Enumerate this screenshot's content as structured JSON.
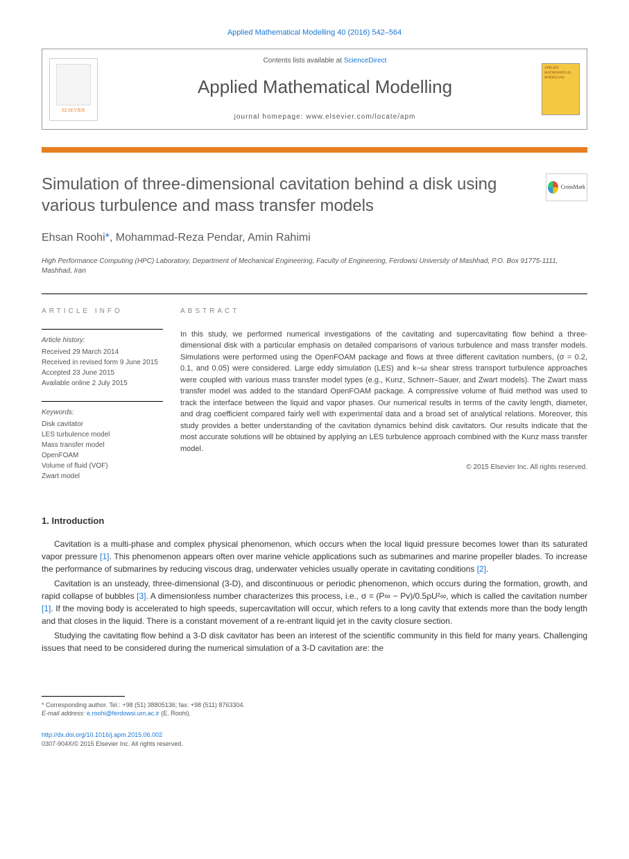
{
  "header": {
    "journal_ref": "Applied Mathematical Modelling 40 (2016) 542–564",
    "contents_prefix": "Contents lists available at ",
    "contents_link": "ScienceDirect",
    "journal_name": "Applied Mathematical Modelling",
    "homepage_label": "journal homepage: www.elsevier.com/locate/apm",
    "elsevier_label": "ELSEVIER",
    "thumb_text": "APPLIED MATHEMATICAL MODELLING",
    "crossmark": "CrossMark"
  },
  "article": {
    "title": "Simulation of three-dimensional cavitation behind a disk using various turbulence and mass transfer models",
    "authors": "Ehsan Roohi",
    "author_sep1": ", Mohammad-Reza Pendar, Amin Rahimi",
    "asterisk": "*",
    "affiliation": "High Performance Computing (HPC) Laboratory, Department of Mechanical Engineering, Faculty of Engineering, Ferdowsi University of Mashhad, P.O. Box 91775-1111, Mashhad, Iran"
  },
  "info": {
    "label": "ARTICLE INFO",
    "history_label": "Article history:",
    "received": "Received 29 March 2014",
    "revised": "Received in revised form 9 June 2015",
    "accepted": "Accepted 23 June 2015",
    "online": "Available online 2 July 2015",
    "keywords_label": "Keywords:",
    "kw1": "Disk cavitator",
    "kw2": "LES turbulence model",
    "kw3": "Mass transfer model",
    "kw4": "OpenFOAM",
    "kw5": "Volume of fluid (VOF)",
    "kw6": "Zwart model"
  },
  "abstract": {
    "label": "ABSTRACT",
    "text": "In this study, we performed numerical investigations of the cavitating and supercavitating flow behind a three-dimensional disk with a particular emphasis on detailed comparisons of various turbulence and mass transfer models. Simulations were performed using the OpenFOAM package and flows at three different cavitation numbers, (σ = 0.2, 0.1, and 0.05) were considered. Large eddy simulation (LES) and k−ω shear stress transport turbulence approaches were coupled with various mass transfer model types (e.g., Kunz, Schnerr–Sauer, and Zwart models). The Zwart mass transfer model was added to the standard OpenFOAM package. A compressive volume of fluid method was used to track the interface between the liquid and vapor phases. Our numerical results in terms of the cavity length, diameter, and drag coefficient compared fairly well with experimental data and a broad set of analytical relations. Moreover, this study provides a better understanding of the cavitation dynamics behind disk cavitators. Our results indicate that the most accurate solutions will be obtained by applying an LES turbulence approach combined with the Kunz mass transfer model.",
    "copyright": "© 2015 Elsevier Inc. All rights reserved."
  },
  "intro": {
    "heading": "1. Introduction",
    "p1a": "Cavitation is a multi-phase and complex physical phenomenon, which occurs when the local liquid pressure becomes lower than its saturated vapor pressure ",
    "p1_ref1": "[1]",
    "p1b": ". This phenomenon appears often over marine vehicle applications such as submarines and marine propeller blades. To increase the performance of submarines by reducing viscous drag, underwater vehicles usually operate in cavitating conditions ",
    "p1_ref2": "[2]",
    "p1c": ".",
    "p2a": "Cavitation is an unsteady, three-dimensional (3-D), and discontinuous or periodic phenomenon, which occurs during the formation, growth, and rapid collapse of bubbles ",
    "p2_ref1": "[3]",
    "p2b": ". A dimensionless number characterizes this process, i.e., σ = (P∞ − Pv)/0.5ρU²∞, which is called the cavitation number ",
    "p2_ref2": "[1]",
    "p2c": ". If the moving body is accelerated to high speeds, supercavitation will occur, which refers to a long cavity that extends more than the body length and that closes in the liquid. There is a constant movement of a re-entrant liquid jet in the cavity closure section.",
    "p3": "Studying the cavitating flow behind a 3-D disk cavitator has been an interest of the scientific community in this field for many years. Challenging issues that need to be considered during the numerical simulation of a 3-D cavitation are: the"
  },
  "footnote": {
    "corr": "* Corresponding author. Tel.: +98 (51) 38805136; fax: +98 (511) 8763304.",
    "email_label": "E-mail address: ",
    "email": "e.roohi@ferdowsi.um.ac.ir",
    "email_suffix": " (E. Roohi)."
  },
  "footer": {
    "doi": "http://dx.doi.org/10.1016/j.apm.2015.06.002",
    "issn": "0307-904X/© 2015 Elsevier Inc. All rights reserved."
  },
  "colors": {
    "link": "#1976d2",
    "orange": "#e67e22",
    "title_gray": "#5a5a5a"
  }
}
